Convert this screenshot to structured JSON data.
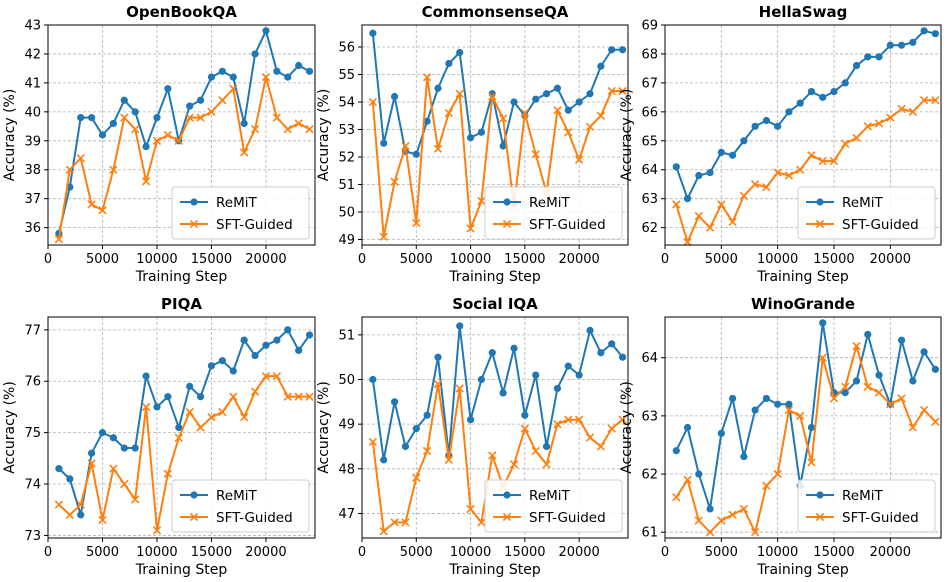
{
  "colors": {
    "remit": "#1f77b4",
    "sft": "#ff7f0e"
  },
  "chart_data": [
    {
      "type": "line",
      "title": "OpenBookQA",
      "xlabel": "Training Step",
      "ylabel": "Accuracy (%)",
      "xlim": [
        0,
        24500
      ],
      "ylim": [
        35.4,
        43.0
      ],
      "xticks": [
        0,
        5000,
        10000,
        15000,
        20000
      ],
      "yticks": [
        36,
        37,
        38,
        39,
        40,
        41,
        42,
        43
      ],
      "x": [
        1000,
        2000,
        3000,
        4000,
        5000,
        6000,
        7000,
        8000,
        9000,
        10000,
        11000,
        12000,
        13000,
        14000,
        15000,
        16000,
        17000,
        18000,
        19000,
        20000,
        21000,
        22000,
        23000,
        24000
      ],
      "series": [
        {
          "name": "ReMiT",
          "marker": "o",
          "values": [
            35.8,
            37.4,
            39.8,
            39.8,
            39.2,
            39.6,
            40.4,
            40.0,
            38.8,
            39.8,
            40.8,
            39.0,
            40.2,
            40.4,
            41.2,
            41.4,
            41.2,
            39.6,
            42.0,
            42.8,
            41.4,
            41.2,
            41.6,
            41.4
          ]
        },
        {
          "name": "SFT-Guided",
          "marker": "x",
          "values": [
            35.6,
            38.0,
            38.4,
            36.8,
            36.6,
            38.0,
            39.8,
            39.4,
            37.6,
            39.0,
            39.2,
            39.0,
            39.8,
            39.8,
            40.0,
            40.4,
            40.8,
            38.6,
            39.4,
            41.2,
            39.8,
            39.4,
            39.6,
            39.4
          ]
        }
      ]
    },
    {
      "type": "line",
      "title": "CommonsenseQA",
      "xlabel": "Training Step",
      "ylabel": "Accuracy (%)",
      "xlim": [
        0,
        24500
      ],
      "ylim": [
        48.8,
        56.8
      ],
      "xticks": [
        0,
        5000,
        10000,
        15000,
        20000
      ],
      "yticks": [
        49,
        50,
        51,
        52,
        53,
        54,
        55,
        56
      ],
      "x": [
        1000,
        2000,
        3000,
        4000,
        5000,
        6000,
        7000,
        8000,
        9000,
        10000,
        11000,
        12000,
        13000,
        14000,
        15000,
        16000,
        17000,
        18000,
        19000,
        20000,
        21000,
        22000,
        23000,
        24000
      ],
      "series": [
        {
          "name": "ReMiT",
          "marker": "o",
          "values": [
            56.5,
            52.5,
            54.2,
            52.2,
            52.1,
            53.3,
            54.5,
            55.4,
            55.8,
            52.7,
            52.9,
            54.3,
            52.4,
            54.0,
            53.5,
            54.1,
            54.3,
            54.5,
            53.7,
            54.0,
            54.3,
            55.3,
            55.9,
            55.9
          ]
        },
        {
          "name": "SFT-Guided",
          "marker": "x",
          "values": [
            54.0,
            49.1,
            51.1,
            52.4,
            49.6,
            54.9,
            52.3,
            53.6,
            54.3,
            49.4,
            50.4,
            54.2,
            53.4,
            50.2,
            53.6,
            52.1,
            50.7,
            53.7,
            52.9,
            51.9,
            53.1,
            53.5,
            54.4,
            54.4
          ]
        }
      ]
    },
    {
      "type": "line",
      "title": "HellaSwag",
      "xlabel": "Training Step",
      "ylabel": "Accuracy (%)",
      "xlim": [
        0,
        24500
      ],
      "ylim": [
        61.4,
        69.0
      ],
      "xticks": [
        0,
        5000,
        10000,
        15000,
        20000
      ],
      "yticks": [
        62,
        63,
        64,
        65,
        66,
        67,
        68,
        69
      ],
      "x": [
        1000,
        2000,
        3000,
        4000,
        5000,
        6000,
        7000,
        8000,
        9000,
        10000,
        11000,
        12000,
        13000,
        14000,
        15000,
        16000,
        17000,
        18000,
        19000,
        20000,
        21000,
        22000,
        23000,
        24000
      ],
      "series": [
        {
          "name": "ReMiT",
          "marker": "o",
          "values": [
            64.1,
            63.0,
            63.8,
            63.9,
            64.6,
            64.5,
            65.0,
            65.5,
            65.7,
            65.5,
            66.0,
            66.3,
            66.7,
            66.5,
            66.7,
            67.0,
            67.6,
            67.9,
            67.9,
            68.3,
            68.3,
            68.4,
            68.8,
            68.7
          ]
        },
        {
          "name": "SFT-Guided",
          "marker": "x",
          "values": [
            62.8,
            61.5,
            62.4,
            62.0,
            62.8,
            62.2,
            63.1,
            63.5,
            63.4,
            63.9,
            63.8,
            64.0,
            64.5,
            64.3,
            64.3,
            64.9,
            65.1,
            65.5,
            65.6,
            65.8,
            66.1,
            66.0,
            66.4,
            66.4
          ]
        }
      ]
    },
    {
      "type": "line",
      "title": "PIQA",
      "xlabel": "Training Step",
      "ylabel": "Accuracy (%)",
      "xlim": [
        0,
        24500
      ],
      "ylim": [
        72.95,
        77.25
      ],
      "xticks": [
        0,
        5000,
        10000,
        15000,
        20000
      ],
      "yticks": [
        73,
        74,
        75,
        76,
        77
      ],
      "x": [
        1000,
        2000,
        3000,
        4000,
        5000,
        6000,
        7000,
        8000,
        9000,
        10000,
        11000,
        12000,
        13000,
        14000,
        15000,
        16000,
        17000,
        18000,
        19000,
        20000,
        21000,
        22000,
        23000,
        24000
      ],
      "series": [
        {
          "name": "ReMiT",
          "marker": "o",
          "values": [
            74.3,
            74.1,
            73.4,
            74.6,
            75.0,
            74.9,
            74.7,
            74.7,
            76.1,
            75.5,
            75.7,
            75.1,
            75.9,
            75.7,
            76.3,
            76.4,
            76.2,
            76.8,
            76.5,
            76.7,
            76.8,
            77.0,
            76.6,
            76.9
          ]
        },
        {
          "name": "SFT-Guided",
          "marker": "x",
          "values": [
            73.6,
            73.4,
            73.6,
            74.4,
            73.3,
            74.3,
            74.0,
            73.7,
            75.5,
            73.1,
            74.2,
            74.9,
            75.4,
            75.1,
            75.3,
            75.4,
            75.7,
            75.3,
            75.8,
            76.1,
            76.1,
            75.7,
            75.7,
            75.7
          ]
        }
      ]
    },
    {
      "type": "line",
      "title": "Social IQA",
      "xlabel": "Training Step",
      "ylabel": "Accuracy (%)",
      "xlim": [
        0,
        24500
      ],
      "ylim": [
        46.45,
        51.4
      ],
      "xticks": [
        0,
        5000,
        10000,
        15000,
        20000
      ],
      "yticks": [
        47,
        48,
        49,
        50,
        51
      ],
      "x": [
        1000,
        2000,
        3000,
        4000,
        5000,
        6000,
        7000,
        8000,
        9000,
        10000,
        11000,
        12000,
        13000,
        14000,
        15000,
        16000,
        17000,
        18000,
        19000,
        20000,
        21000,
        22000,
        23000,
        24000
      ],
      "series": [
        {
          "name": "ReMiT",
          "marker": "o",
          "values": [
            50.0,
            48.2,
            49.5,
            48.5,
            48.9,
            49.2,
            50.5,
            48.3,
            51.2,
            49.1,
            50.0,
            50.6,
            49.7,
            50.7,
            49.2,
            50.1,
            48.5,
            49.8,
            50.3,
            50.1,
            51.1,
            50.6,
            50.8,
            50.5
          ]
        },
        {
          "name": "SFT-Guided",
          "marker": "x",
          "values": [
            48.6,
            46.6,
            46.8,
            46.8,
            47.8,
            48.4,
            49.9,
            48.2,
            49.8,
            47.1,
            46.8,
            48.3,
            47.6,
            48.1,
            48.9,
            48.4,
            48.1,
            49.0,
            49.1,
            49.1,
            48.7,
            48.5,
            48.9,
            49.1
          ]
        }
      ]
    },
    {
      "type": "line",
      "title": "WinoGrande",
      "xlabel": "Training Step",
      "ylabel": "Accuracy (%)",
      "xlim": [
        0,
        24500
      ],
      "ylim": [
        60.9,
        64.7
      ],
      "xticks": [
        0,
        5000,
        10000,
        15000,
        20000
      ],
      "yticks": [
        61,
        62,
        63,
        64
      ],
      "x": [
        1000,
        2000,
        3000,
        4000,
        5000,
        6000,
        7000,
        8000,
        9000,
        10000,
        11000,
        12000,
        13000,
        14000,
        15000,
        16000,
        17000,
        18000,
        19000,
        20000,
        21000,
        22000,
        23000,
        24000
      ],
      "series": [
        {
          "name": "ReMiT",
          "marker": "o",
          "values": [
            62.4,
            62.8,
            62.0,
            61.4,
            62.7,
            63.3,
            62.3,
            63.1,
            63.3,
            63.2,
            63.2,
            61.8,
            62.8,
            64.6,
            63.4,
            63.4,
            63.6,
            64.4,
            63.7,
            63.2,
            64.3,
            63.6,
            64.1,
            63.8
          ]
        },
        {
          "name": "SFT-Guided",
          "marker": "x",
          "values": [
            61.6,
            61.9,
            61.2,
            61.0,
            61.2,
            61.3,
            61.4,
            61.0,
            61.8,
            62.0,
            63.1,
            63.0,
            62.2,
            64.0,
            63.3,
            63.5,
            64.2,
            63.5,
            63.4,
            63.2,
            63.3,
            62.8,
            63.1,
            62.9
          ]
        }
      ]
    }
  ]
}
